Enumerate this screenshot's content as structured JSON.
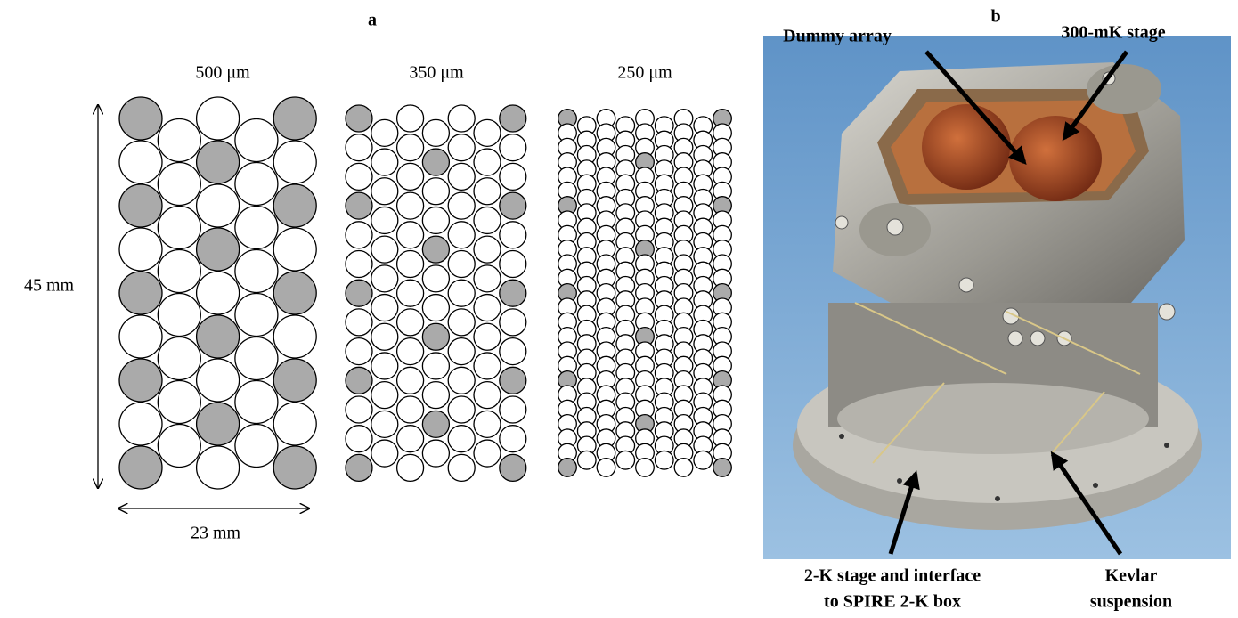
{
  "panel_a": {
    "label": "a",
    "arrays": [
      {
        "pitch": "500 μm"
      },
      {
        "pitch": "350 μm"
      },
      {
        "pitch": "250 μm"
      }
    ],
    "height": "45 mm",
    "width": "23 mm"
  },
  "panel_b": {
    "label": "b",
    "callouts": {
      "dummy_array": "Dummy array",
      "stage_300mk": "300-mK stage",
      "stage_2k_line1": "2-K stage and interface",
      "stage_2k_line2": "to SPIRE 2-K box",
      "kevlar_line1": "Kevlar",
      "kevlar_line2": "suspension"
    }
  }
}
